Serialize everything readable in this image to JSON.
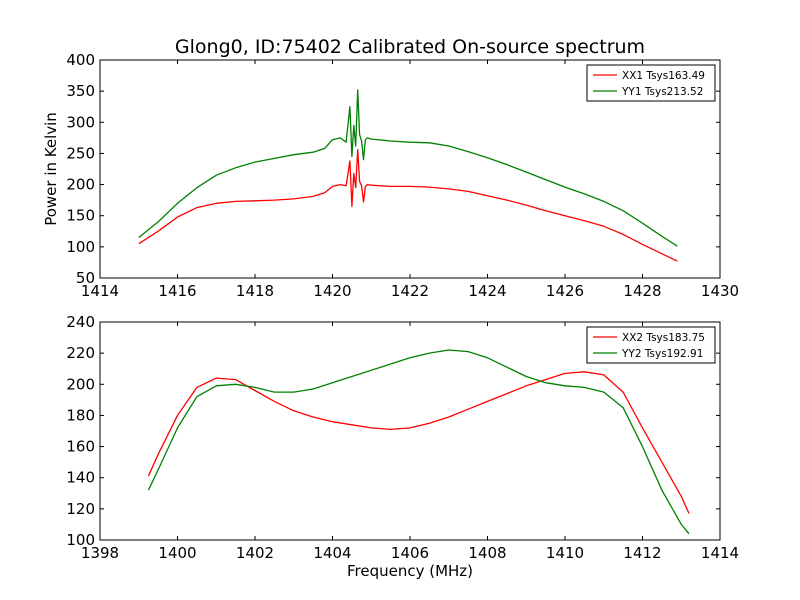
{
  "figure_title": "Glong0, ID:75402 Calibrated On-source spectrum",
  "chart_data": [
    {
      "type": "line",
      "title": "Glong0, ID:75402 Calibrated On-source spectrum",
      "xlabel": "",
      "ylabel": "Power in Kelvin",
      "xlim": [
        1414,
        1430
      ],
      "ylim": [
        50,
        400
      ],
      "xticks": [
        "1414",
        "1416",
        "1418",
        "1420",
        "1422",
        "1424",
        "1426",
        "1428",
        "1430"
      ],
      "yticks": [
        "50",
        "100",
        "150",
        "200",
        "250",
        "300",
        "350",
        "400"
      ],
      "grid": false,
      "legend_position": "top-right",
      "series": [
        {
          "name": "XX1 Tsys163.49",
          "color": "#ff0000",
          "x": [
            1415.0,
            1415.5,
            1416.0,
            1416.5,
            1417.0,
            1417.5,
            1418.0,
            1418.5,
            1419.0,
            1419.5,
            1419.8,
            1420.0,
            1420.2,
            1420.35,
            1420.45,
            1420.5,
            1420.55,
            1420.6,
            1420.65,
            1420.7,
            1420.75,
            1420.8,
            1420.85,
            1420.9,
            1421.0,
            1421.5,
            1422.0,
            1422.5,
            1423.0,
            1423.5,
            1424.0,
            1424.5,
            1425.0,
            1425.5,
            1426.0,
            1426.5,
            1427.0,
            1427.5,
            1428.0,
            1428.5,
            1428.9
          ],
          "y": [
            105,
            125,
            148,
            163,
            170,
            173,
            174,
            175,
            177,
            181,
            187,
            197,
            200,
            198,
            238,
            165,
            218,
            195,
            256,
            205,
            198,
            172,
            197,
            200,
            199,
            197,
            197,
            196,
            193,
            189,
            182,
            175,
            167,
            158,
            150,
            142,
            133,
            120,
            104,
            89,
            77
          ]
        },
        {
          "name": "YY1 Tsys213.52",
          "color": "#008000",
          "x": [
            1415.0,
            1415.5,
            1416.0,
            1416.5,
            1417.0,
            1417.5,
            1418.0,
            1418.5,
            1419.0,
            1419.5,
            1419.8,
            1420.0,
            1420.2,
            1420.35,
            1420.45,
            1420.5,
            1420.55,
            1420.6,
            1420.65,
            1420.7,
            1420.75,
            1420.8,
            1420.85,
            1420.9,
            1421.0,
            1421.5,
            1422.0,
            1422.5,
            1423.0,
            1423.5,
            1424.0,
            1424.5,
            1425.0,
            1425.5,
            1426.0,
            1426.5,
            1427.0,
            1427.5,
            1428.0,
            1428.5,
            1428.9
          ],
          "y": [
            115,
            140,
            170,
            195,
            215,
            227,
            236,
            242,
            248,
            252,
            258,
            272,
            275,
            268,
            325,
            245,
            295,
            262,
            352,
            280,
            270,
            240,
            272,
            275,
            273,
            270,
            268,
            267,
            262,
            253,
            243,
            232,
            220,
            208,
            196,
            185,
            173,
            158,
            138,
            117,
            101
          ]
        }
      ]
    },
    {
      "type": "line",
      "title": "",
      "xlabel": "Frequency (MHz)",
      "ylabel": "",
      "xlim": [
        1398,
        1414
      ],
      "ylim": [
        100,
        240
      ],
      "xticks": [
        "1398",
        "1400",
        "1402",
        "1404",
        "1406",
        "1408",
        "1410",
        "1412",
        "1414"
      ],
      "yticks": [
        "100",
        "120",
        "140",
        "160",
        "180",
        "200",
        "220",
        "240"
      ],
      "grid": false,
      "legend_position": "top-right",
      "series": [
        {
          "name": "XX2 Tsys183.75",
          "color": "#ff0000",
          "x": [
            1399.25,
            1399.5,
            1400.0,
            1400.5,
            1401.0,
            1401.5,
            1402.0,
            1402.5,
            1403.0,
            1403.5,
            1404.0,
            1404.5,
            1405.0,
            1405.5,
            1406.0,
            1406.5,
            1407.0,
            1407.5,
            1408.0,
            1408.5,
            1409.0,
            1409.5,
            1410.0,
            1410.5,
            1411.0,
            1411.5,
            1412.0,
            1412.5,
            1413.0,
            1413.2
          ],
          "y": [
            141,
            155,
            180,
            198,
            204,
            203,
            196,
            189,
            183,
            179,
            176,
            174,
            172,
            171,
            172,
            175,
            179,
            184,
            189,
            194,
            199,
            203,
            207,
            208,
            206,
            195,
            172,
            150,
            128,
            117
          ]
        },
        {
          "name": "YY2 Tsys192.91",
          "color": "#008000",
          "x": [
            1399.25,
            1399.5,
            1400.0,
            1400.5,
            1401.0,
            1401.5,
            1402.0,
            1402.5,
            1403.0,
            1403.5,
            1404.0,
            1404.5,
            1405.0,
            1405.5,
            1406.0,
            1406.5,
            1407.0,
            1407.5,
            1408.0,
            1408.5,
            1409.0,
            1409.5,
            1410.0,
            1410.5,
            1411.0,
            1411.5,
            1412.0,
            1412.5,
            1413.0,
            1413.2
          ],
          "y": [
            132,
            145,
            172,
            192,
            199,
            200,
            198,
            195,
            195,
            197,
            201,
            205,
            209,
            213,
            217,
            220,
            222,
            221,
            217,
            211,
            205,
            201,
            199,
            198,
            195,
            185,
            160,
            132,
            110,
            104
          ]
        }
      ]
    }
  ]
}
